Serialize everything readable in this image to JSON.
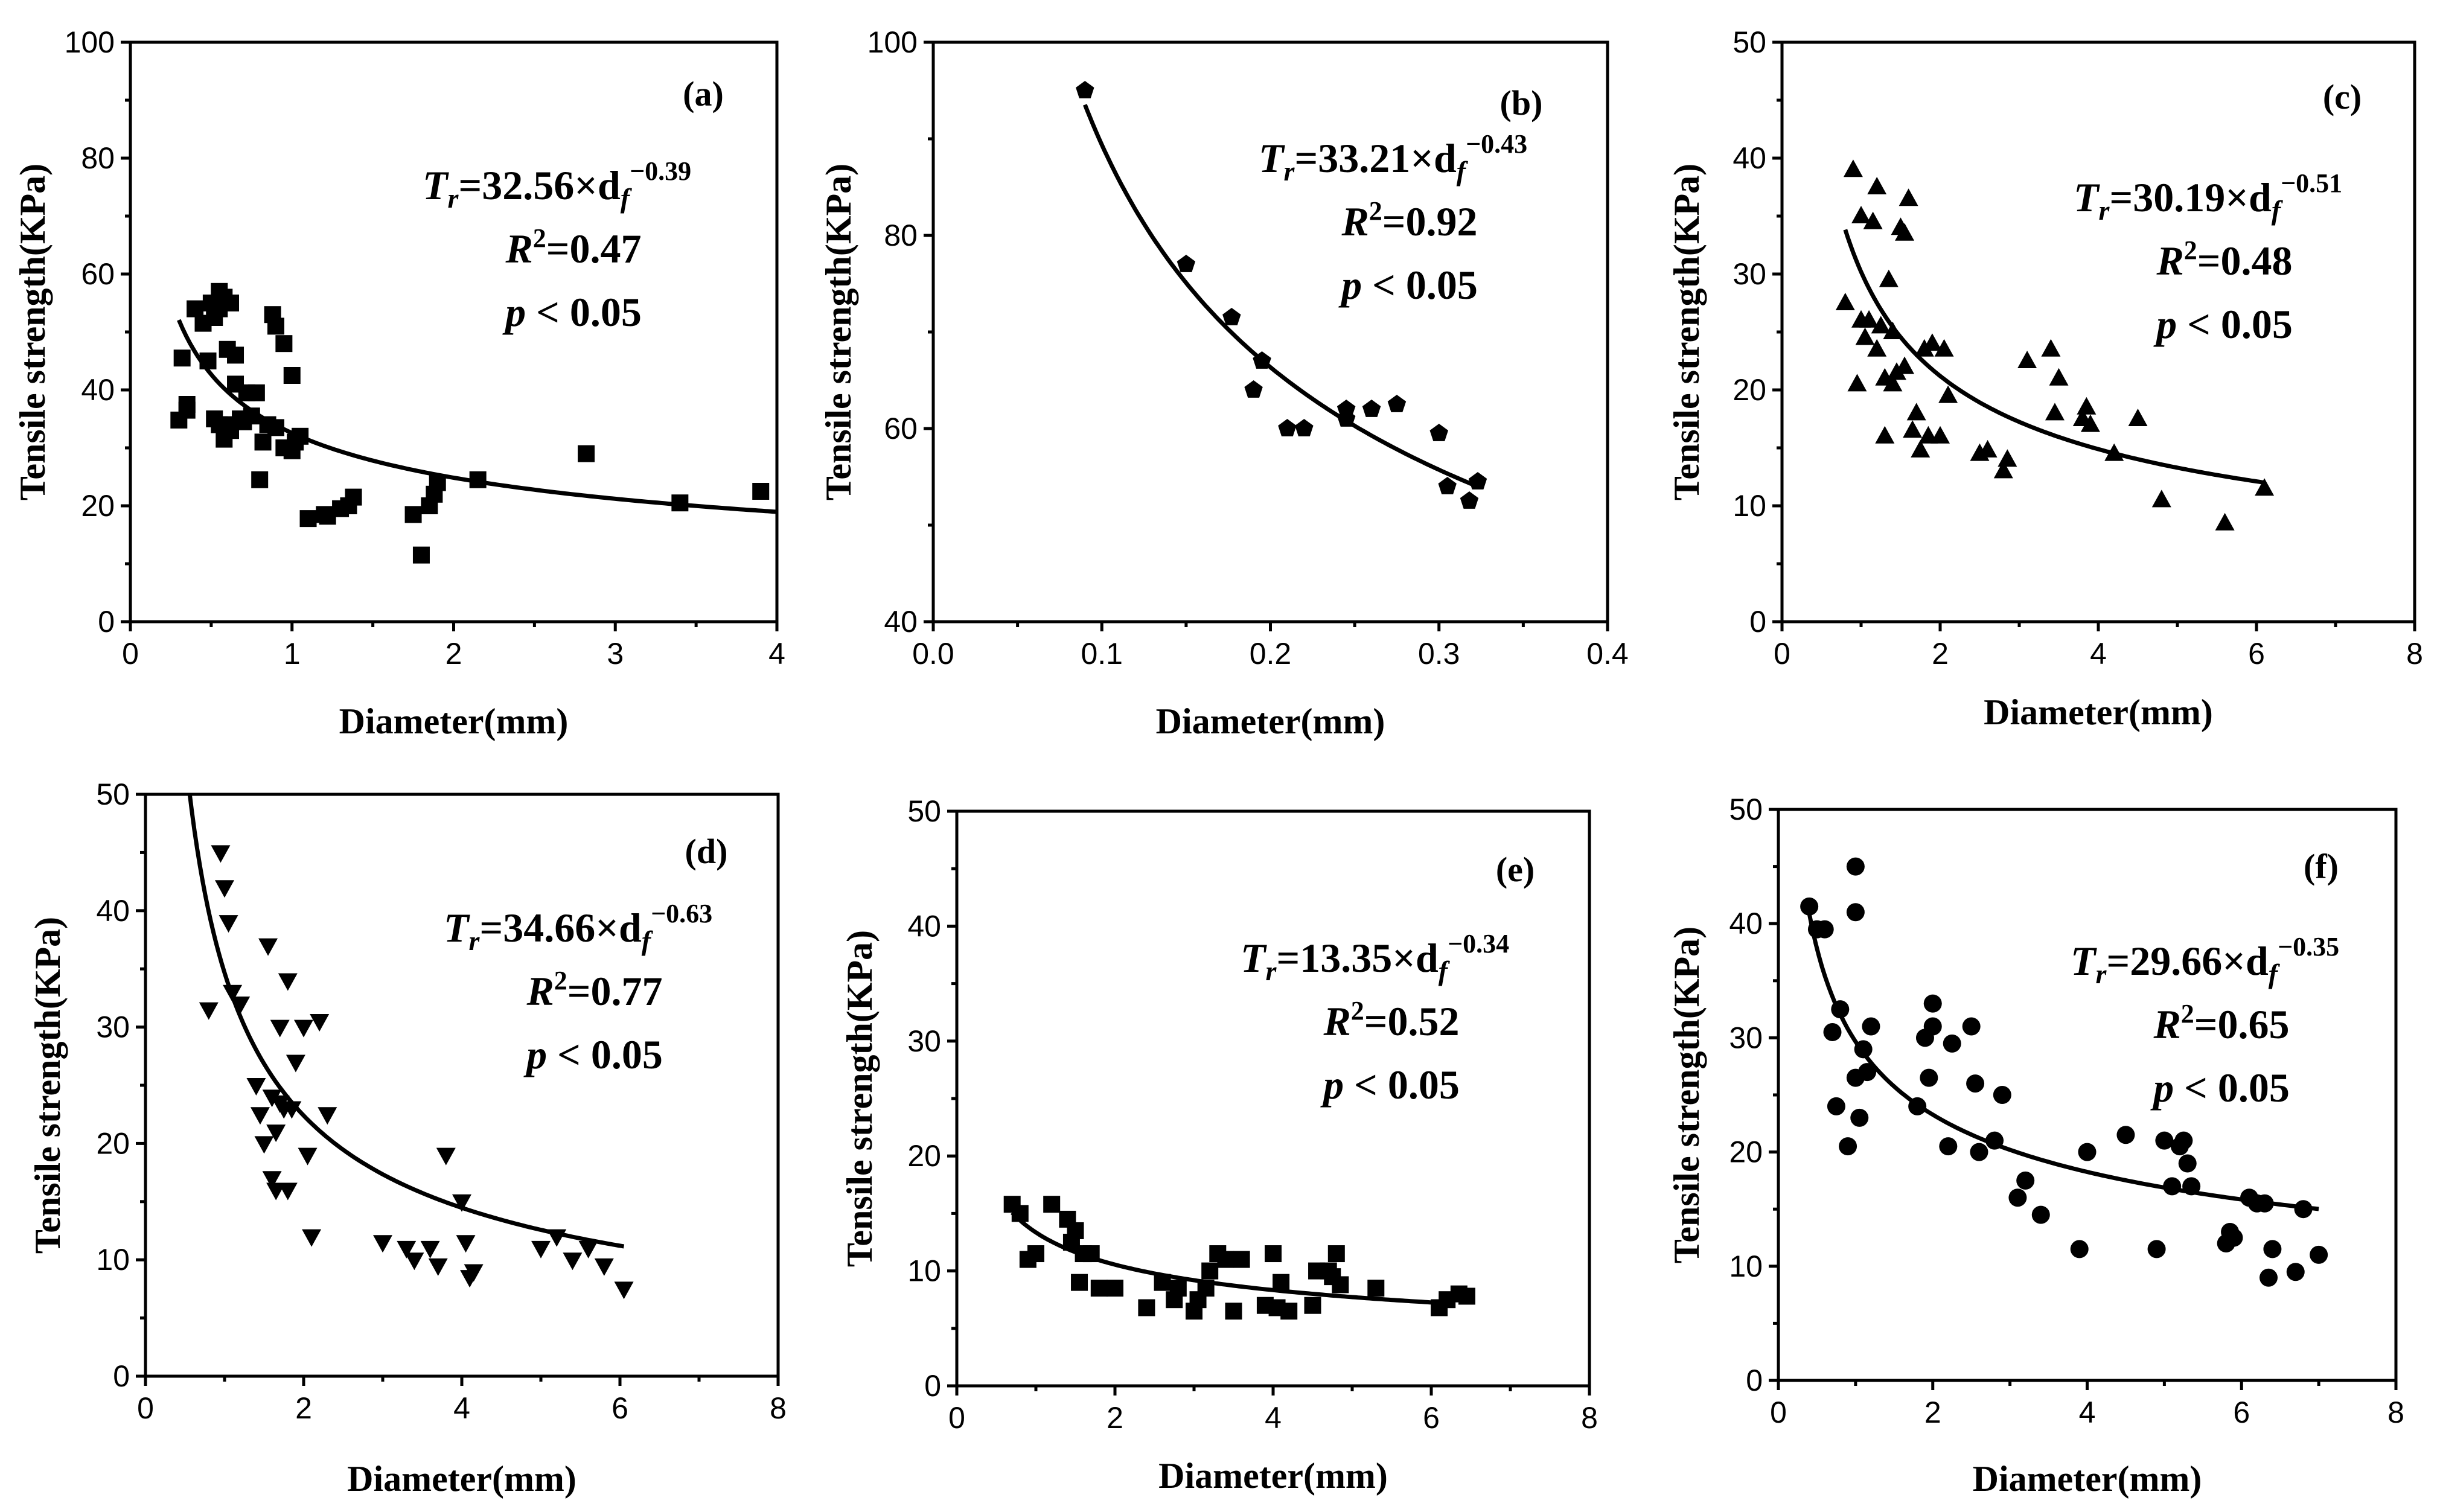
{
  "xlabel": "Diameter(mm)",
  "ylabel": "Tensile strength(KPa)",
  "chart_data": [
    {
      "type": "scatter",
      "panel": "(a)",
      "marker": "square",
      "xlim": [
        0,
        4
      ],
      "xticks": [
        0,
        1,
        2,
        3,
        4
      ],
      "xtick_labels": [
        "0",
        "1",
        "2",
        "3",
        "4"
      ],
      "ylim": [
        0,
        100
      ],
      "yticks": [
        0,
        20,
        40,
        60,
        80,
        100
      ],
      "ytick_labels": [
        "0",
        "20",
        "40",
        "60",
        "80",
        "100"
      ],
      "fit": {
        "a": 32.56,
        "b": -0.39,
        "x_range": [
          0.3,
          4.0
        ]
      },
      "equation": {
        "lhs": "T",
        "lhs_sub": "r",
        "rhs": "=32.56×d",
        "rhs_sub": "f",
        "exponent": "−0.39"
      },
      "r2": {
        "label": "R",
        "sup": "2",
        "value": "=0.47"
      },
      "p": {
        "label": "p",
        "value": " < 0.05"
      },
      "x": [
        0.3,
        0.32,
        0.35,
        0.35,
        0.4,
        0.45,
        0.48,
        0.5,
        0.52,
        0.52,
        0.55,
        0.55,
        0.55,
        0.58,
        0.58,
        0.6,
        0.6,
        0.62,
        0.62,
        0.65,
        0.65,
        0.68,
        0.7,
        0.72,
        0.75,
        0.78,
        0.8,
        0.82,
        0.85,
        0.88,
        0.9,
        0.9,
        0.95,
        0.95,
        1.0,
        1.0,
        1.02,
        1.05,
        1.1,
        1.2,
        1.22,
        1.3,
        1.35,
        1.38,
        1.75,
        1.8,
        1.85,
        1.88,
        1.9,
        2.15,
        2.82,
        3.4,
        3.9
      ],
      "y": [
        34.8,
        45.5,
        36.5,
        37.5,
        54,
        51.5,
        45,
        55,
        52.5,
        35,
        57,
        54,
        34,
        56,
        31.5,
        47,
        34,
        33,
        55,
        46,
        41,
        35,
        34.5,
        39.5,
        35.5,
        39.5,
        24.5,
        31,
        34,
        53,
        51,
        33.5,
        30,
        48,
        29.5,
        42.5,
        31,
        32,
        17.8,
        18.5,
        18.2,
        19.5,
        20,
        21.5,
        18.5,
        11.5,
        20,
        22,
        24,
        24.5,
        29,
        20.5,
        22.5
      ]
    },
    {
      "type": "scatter",
      "panel": "(b)",
      "marker": "pentagon",
      "xlim": [
        0,
        0.4
      ],
      "xticks": [
        0,
        0.1,
        0.2,
        0.3,
        0.4
      ],
      "xtick_labels": [
        "0.0",
        "0.1",
        "0.2",
        "0.3",
        "0.4"
      ],
      "ylim": [
        40,
        100
      ],
      "yticks": [
        40,
        60,
        80,
        100
      ],
      "ytick_labels": [
        "40",
        "60",
        "80",
        "100"
      ],
      "fit": {
        "a": 33.21,
        "b": -0.43,
        "x_range": [
          0.09,
          0.32
        ]
      },
      "equation": {
        "lhs": "T",
        "lhs_sub": "r",
        "rhs": "=33.21×d",
        "rhs_sub": "f",
        "exponent": "−0.43"
      },
      "r2": {
        "label": "R",
        "sup": "2",
        "value": "=0.92"
      },
      "p": {
        "label": "p",
        "value": " < 0.05"
      },
      "x": [
        0.09,
        0.15,
        0.177,
        0.19,
        0.195,
        0.21,
        0.22,
        0.245,
        0.245,
        0.26,
        0.275,
        0.3,
        0.305,
        0.318,
        0.323
      ],
      "y": [
        95,
        77,
        71.5,
        64,
        67,
        60,
        60,
        62,
        61,
        62,
        62.5,
        59.5,
        54,
        52.5,
        54.5
      ]
    },
    {
      "type": "scatter",
      "panel": "(c)",
      "marker": "triangle-up",
      "xlim": [
        0,
        8
      ],
      "xticks": [
        0,
        2,
        4,
        6,
        8
      ],
      "xtick_labels": [
        "0",
        "2",
        "4",
        "6",
        "8"
      ],
      "ylim": [
        0,
        50
      ],
      "yticks": [
        0,
        10,
        20,
        30,
        40,
        50
      ],
      "ytick_labels": [
        "0",
        "10",
        "20",
        "30",
        "40",
        "50"
      ],
      "fit": {
        "a": 30.19,
        "b": -0.51,
        "x_range": [
          0.8,
          6.1
        ]
      },
      "equation": {
        "lhs": "T",
        "lhs_sub": "r",
        "rhs": "=30.19×d",
        "rhs_sub": "f",
        "exponent": "−0.51"
      },
      "r2": {
        "label": "R",
        "sup": "2",
        "value": "=0.48"
      },
      "p": {
        "label": "p",
        "value": " < 0.05"
      },
      "x": [
        0.8,
        0.9,
        0.95,
        1.0,
        1.0,
        1.05,
        1.1,
        1.15,
        1.2,
        1.2,
        1.25,
        1.3,
        1.3,
        1.35,
        1.4,
        1.4,
        1.45,
        1.5,
        1.55,
        1.55,
        1.6,
        1.65,
        1.7,
        1.75,
        1.8,
        1.85,
        1.9,
        2.0,
        2.05,
        2.1,
        2.5,
        2.6,
        2.8,
        2.85,
        3.1,
        3.4,
        3.45,
        3.5,
        3.8,
        3.85,
        3.9,
        4.2,
        4.5,
        4.8,
        5.6,
        6.1
      ],
      "y": [
        27.5,
        39,
        20.5,
        35,
        26,
        24.5,
        26,
        34.5,
        37.5,
        23.5,
        25.5,
        16,
        21,
        29.5,
        20.5,
        25,
        21.5,
        34,
        33.5,
        22,
        36.5,
        16.5,
        18,
        14.8,
        23.5,
        16,
        24,
        16,
        23.5,
        19.5,
        14.5,
        14.8,
        13,
        14,
        22.5,
        23.5,
        18,
        21,
        17.5,
        18.5,
        17,
        14.5,
        17.5,
        10.5,
        8.5,
        11.5
      ]
    },
    {
      "type": "scatter",
      "panel": "(d)",
      "marker": "triangle-down",
      "xlim": [
        0,
        8
      ],
      "xticks": [
        0,
        2,
        4,
        6,
        8
      ],
      "xtick_labels": [
        "0",
        "2",
        "4",
        "6",
        "8"
      ],
      "ylim": [
        0,
        50
      ],
      "yticks": [
        0,
        10,
        20,
        30,
        40,
        50
      ],
      "ytick_labels": [
        "0",
        "10",
        "20",
        "30",
        "40",
        "50"
      ],
      "fit": {
        "a": 34.66,
        "b": -0.63,
        "x_range": [
          0.55,
          6.05
        ]
      },
      "equation": {
        "lhs": "T",
        "lhs_sub": "r",
        "rhs": "=34.66×d",
        "rhs_sub": "f",
        "exponent": "−0.63"
      },
      "r2": {
        "label": "R",
        "sup": "2",
        "value": "=0.77"
      },
      "p": {
        "label": "p",
        "value": " < 0.05"
      },
      "x": [
        0.8,
        0.95,
        1.0,
        1.05,
        1.1,
        1.2,
        1.4,
        1.45,
        1.5,
        1.55,
        1.6,
        1.6,
        1.65,
        1.65,
        1.7,
        1.7,
        1.75,
        1.8,
        1.8,
        1.85,
        1.9,
        2.0,
        2.05,
        2.1,
        2.2,
        2.3,
        3.0,
        3.3,
        3.4,
        3.6,
        3.7,
        3.8,
        4.0,
        4.05,
        4.1,
        4.15,
        5.0,
        5.2,
        5.4,
        5.6,
        5.8,
        6.05
      ],
      "y": [
        31.5,
        45,
        42,
        39,
        33,
        32,
        25,
        22.5,
        20,
        37,
        24,
        17,
        21,
        16,
        30,
        23.5,
        23,
        34,
        16,
        23,
        27,
        30,
        19,
        12,
        30.5,
        22.5,
        11.5,
        11,
        10,
        11,
        9.5,
        19,
        15,
        11.5,
        8.5,
        9,
        11,
        12,
        10,
        11,
        9.5,
        7.5
      ]
    },
    {
      "type": "scatter",
      "panel": "(e)",
      "marker": "square",
      "xlim": [
        0,
        8
      ],
      "xticks": [
        0,
        2,
        4,
        6,
        8
      ],
      "xtick_labels": [
        "0",
        "2",
        "4",
        "6",
        "8"
      ],
      "ylim": [
        0,
        50
      ],
      "yticks": [
        0,
        10,
        20,
        30,
        40,
        50
      ],
      "ytick_labels": [
        "0",
        "10",
        "20",
        "30",
        "40",
        "50"
      ],
      "fit": {
        "a": 13.35,
        "b": -0.34,
        "x_range": [
          0.7,
          6.3
        ]
      },
      "equation": {
        "lhs": "T",
        "lhs_sub": "r",
        "rhs": "=13.35×d",
        "rhs_sub": "f",
        "exponent": "−0.34"
      },
      "r2": {
        "label": "R",
        "sup": "2",
        "value": "=0.52"
      },
      "p": {
        "label": "p",
        "value": " < 0.05"
      },
      "x": [
        0.7,
        0.8,
        0.9,
        1.0,
        1.2,
        1.4,
        1.45,
        1.5,
        1.55,
        1.6,
        1.7,
        1.8,
        2.0,
        2.4,
        2.6,
        2.75,
        2.8,
        3.0,
        3.05,
        3.15,
        3.2,
        3.3,
        3.4,
        3.5,
        3.6,
        3.9,
        4.0,
        4.05,
        4.1,
        4.2,
        4.5,
        4.55,
        4.7,
        4.75,
        4.8,
        4.85,
        5.3,
        6.1,
        6.2,
        6.35,
        6.45
      ],
      "y": [
        15.8,
        15,
        11,
        11.5,
        15.8,
        14.5,
        12.5,
        13.5,
        9,
        11.5,
        11.5,
        8.5,
        8.5,
        6.8,
        9,
        7.5,
        8.5,
        6.5,
        7.5,
        8.5,
        10,
        11.5,
        11,
        6.5,
        11,
        7,
        11.5,
        6.8,
        9,
        6.5,
        7,
        10,
        10,
        9.5,
        11.5,
        8.8,
        8.5,
        6.8,
        7.5,
        8,
        7.8
      ]
    },
    {
      "type": "scatter",
      "panel": "(f)",
      "marker": "circle",
      "xlim": [
        0,
        8
      ],
      "xticks": [
        0,
        2,
        4,
        6,
        8
      ],
      "xtick_labels": [
        "0",
        "2",
        "4",
        "6",
        "8"
      ],
      "ylim": [
        0,
        50
      ],
      "yticks": [
        0,
        10,
        20,
        30,
        40,
        50
      ],
      "ytick_labels": [
        "0",
        "10",
        "20",
        "30",
        "40",
        "50"
      ],
      "fit": {
        "a": 29.66,
        "b": -0.35,
        "x_range": [
          0.4,
          7.0
        ]
      },
      "equation": {
        "lhs": "T",
        "lhs_sub": "r",
        "rhs": "=29.66×d",
        "rhs_sub": "f",
        "exponent": "−0.35"
      },
      "r2": {
        "label": "R",
        "sup": "2",
        "value": "=0.65"
      },
      "p": {
        "label": "p",
        "value": " < 0.05"
      },
      "x": [
        0.4,
        0.5,
        0.6,
        0.7,
        0.75,
        0.8,
        0.9,
        1.0,
        1.0,
        1.0,
        1.05,
        1.1,
        1.15,
        1.2,
        1.8,
        1.9,
        1.95,
        2.0,
        2.0,
        2.2,
        2.25,
        2.5,
        2.55,
        2.6,
        2.8,
        2.9,
        3.1,
        3.2,
        3.4,
        3.9,
        4.0,
        4.5,
        4.9,
        5.0,
        5.1,
        5.2,
        5.25,
        5.3,
        5.35,
        5.8,
        5.85,
        5.9,
        6.1,
        6.2,
        6.3,
        6.35,
        6.4,
        6.7,
        6.8,
        7.0
      ],
      "y": [
        41.5,
        39.5,
        39.5,
        30.5,
        24,
        32.5,
        20.5,
        45,
        41,
        26.5,
        23,
        29,
        27,
        31,
        24,
        30,
        26.5,
        31,
        33,
        20.5,
        29.5,
        31,
        26,
        20,
        21,
        25,
        16,
        17.5,
        14.5,
        11.5,
        20,
        21.5,
        11.5,
        21,
        17,
        20.5,
        21,
        19,
        17,
        12,
        13,
        12.5,
        16,
        15.5,
        15.5,
        9,
        11.5,
        9.5,
        15,
        11
      ]
    }
  ]
}
